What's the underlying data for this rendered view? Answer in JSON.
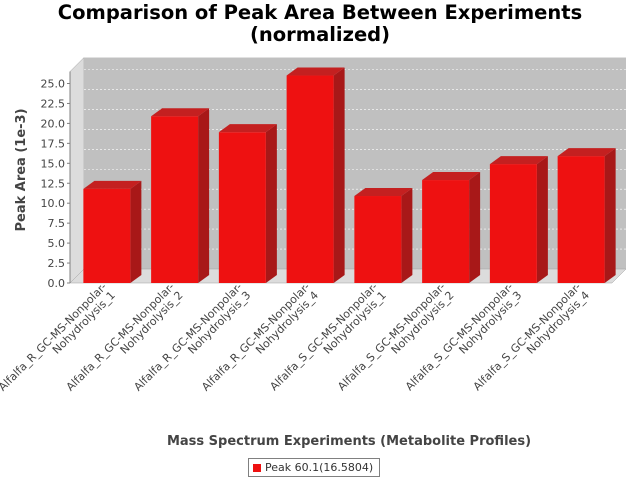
{
  "chart_data": {
    "type": "bar",
    "title_lines": [
      "Comparison of Peak Area Between Experiments",
      "(normalized)"
    ],
    "xlabel": "Mass Spectrum Experiments (Metabolite Profiles)",
    "ylabel": "Peak Area (1e-3)",
    "categories": [
      [
        "Alfalfa_R_GC-MS-Nonpolar-",
        "Nohydrolysis_1"
      ],
      [
        "Alfalfa_R_GC-MS-Nonpolar-",
        "Nohydrolysis_2"
      ],
      [
        "Alfalfa_R_GC-MS-Nonpolar-",
        "Nohydrolysis_3"
      ],
      [
        "Alfalfa_R_GC-MS-Nonpolar-",
        "Nohydrolysis_4"
      ],
      [
        "Alfalfa_S_GC-MS-Nonpolar-",
        "Nohydrolysis_1"
      ],
      [
        "Alfalfa_S_GC-MS-Nonpolar-",
        "Nohydrolysis_2"
      ],
      [
        "Alfalfa_S_GC-MS-Nonpolar-",
        "Nohydrolysis_3"
      ],
      [
        "Alfalfa_S_GC-MS-Nonpolar-",
        "Nohydrolysis_4"
      ]
    ],
    "series": [
      {
        "name": "Peak 60.1(16.5804)",
        "color": "#ee1111",
        "values": [
          11.8,
          20.9,
          18.9,
          26.0,
          10.9,
          12.9,
          14.9,
          15.9
        ]
      }
    ],
    "yticks": [
      "0.0",
      "2.5",
      "5.0",
      "7.5",
      "10.0",
      "12.5",
      "15.0",
      "17.5",
      "20.0",
      "22.5",
      "25.0"
    ],
    "ylim": [
      0,
      26.5
    ],
    "grid": true,
    "legend_position": "bottom",
    "plot_background": "#c0c0c0"
  }
}
